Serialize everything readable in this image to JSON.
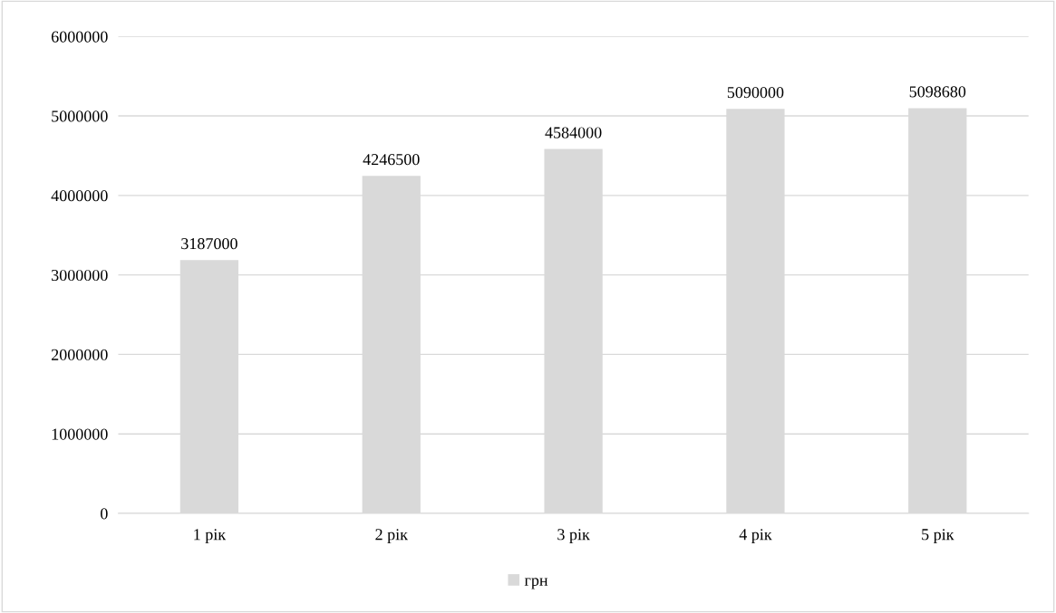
{
  "chart_data": {
    "type": "bar",
    "categories": [
      "1 рік",
      "2 рік",
      "3 рік",
      "4 рік",
      "5 рік"
    ],
    "series": [
      {
        "name": "грн",
        "color": "#d9d9d9",
        "values": [
          3187000,
          4246500,
          4584000,
          5090000,
          5098680
        ]
      }
    ],
    "ylim": [
      0,
      6000000
    ],
    "yticks": [
      0,
      1000000,
      2000000,
      3000000,
      4000000,
      5000000,
      6000000
    ],
    "grid": "y",
    "legend": "bottom",
    "data_labels": true
  }
}
